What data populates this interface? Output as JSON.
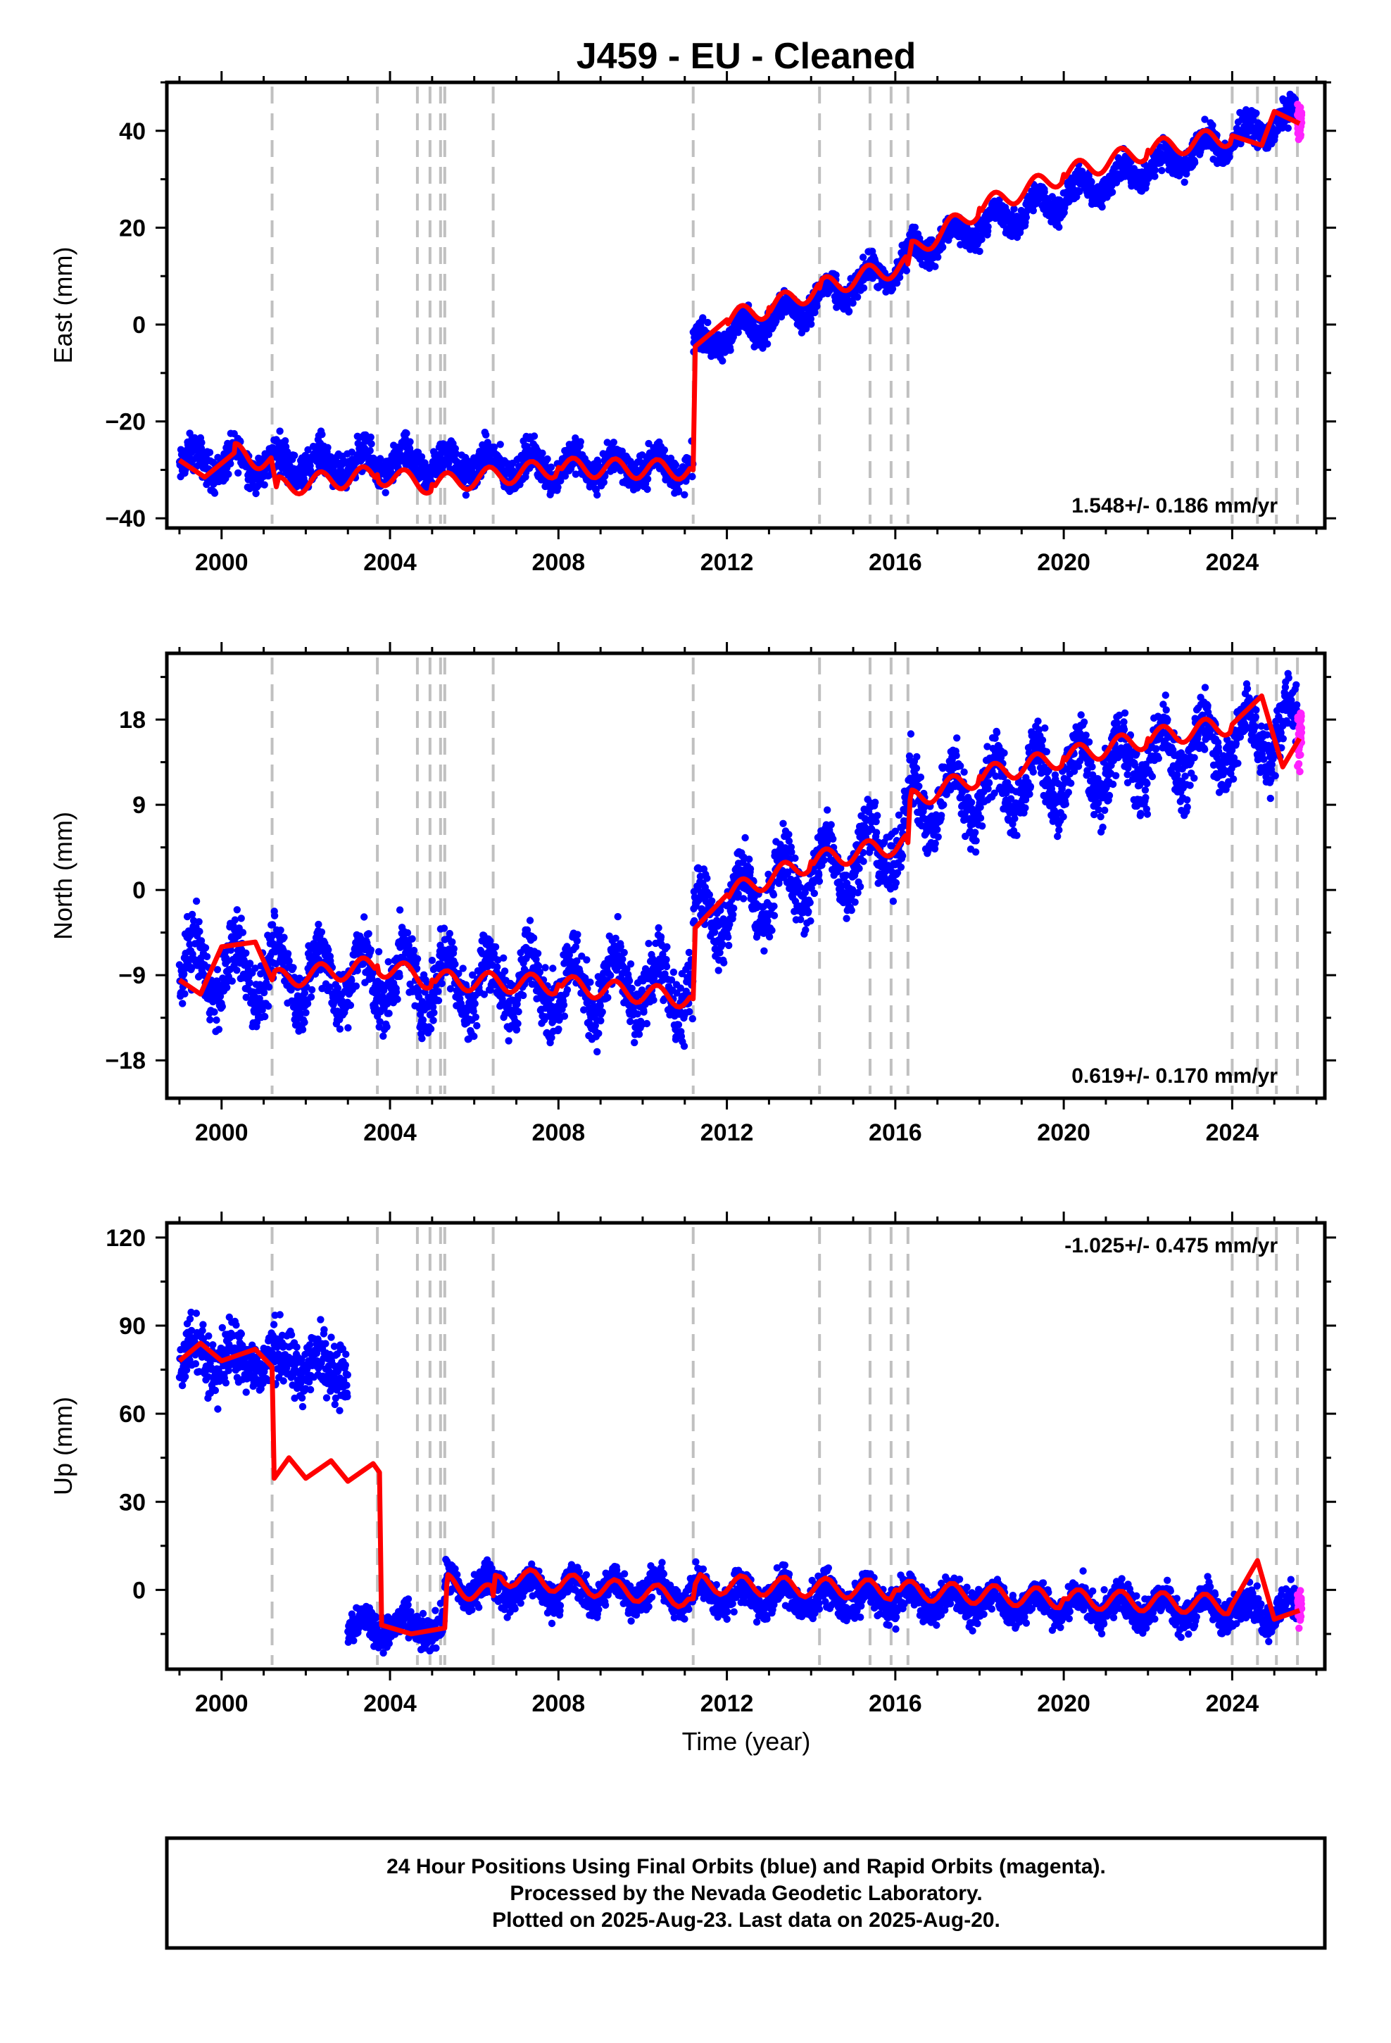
{
  "page": {
    "title": "J459  - EU - Cleaned",
    "xlabel": "Time (year)",
    "footer": [
      "24 Hour Positions Using Final Orbits (blue) and Rapid Orbits (magenta).",
      "Processed by the Nevada Geodetic Laboratory.",
      "Plotted on 2025-Aug-23. Last data on 2025-Aug-20."
    ]
  },
  "colors": {
    "final_orbits": "#0000ff",
    "rapid_orbits": "#ff22ff",
    "model": "#ff0000",
    "events": "#c0c0c0",
    "frame": "#000000"
  },
  "chart_data": [
    {
      "type": "scatter",
      "panel": "east",
      "title": "",
      "ylabel": "East (mm)",
      "xlabel": "",
      "xlim": [
        1998.7,
        2026.2
      ],
      "ylim": [
        -42,
        50
      ],
      "xticks": [
        2000,
        2004,
        2008,
        2012,
        2016,
        2020,
        2024
      ],
      "yticks": [
        -40,
        -20,
        0,
        20,
        40
      ],
      "ytick_labels": [
        "−40",
        "−20",
        "0",
        "20",
        "40"
      ],
      "rate_text": "1.548+/- 0.186 mm/yr",
      "rate_position": "bottom-right",
      "events": [
        2001.2,
        2003.7,
        2004.65,
        2004.95,
        2005.2,
        2005.3,
        2006.45,
        2011.2,
        2014.2,
        2015.4,
        2015.9,
        2016.3,
        2024.0,
        2024.6,
        2025.05,
        2025.55
      ],
      "series": [
        {
          "name": "Final Orbits",
          "color": "#0000ff",
          "segments": [
            {
              "start": 1999.0,
              "end": 2011.2,
              "start_value": -28.5,
              "end_value": -29.5,
              "amplitude": 2.5,
              "scatter": 3.2
            },
            {
              "start": 2011.2,
              "end": 2016.3,
              "start_value": -5.0,
              "end_value": 12.5,
              "amplitude": 2.5,
              "scatter": 2.5
            },
            {
              "start": 2016.3,
              "end": 2025.55,
              "start_value": 15.0,
              "end_value": 43.0,
              "amplitude": 2.3,
              "scatter": 2.5
            }
          ]
        },
        {
          "name": "Rapid Orbits",
          "color": "#ff22ff",
          "range": [
            2025.55,
            2025.65
          ],
          "center": 42,
          "scatter": 3
        }
      ],
      "model": [
        [
          1999.0,
          -28.0
        ],
        [
          1999.6,
          -31.5
        ],
        [
          2000.3,
          -26.5
        ],
        [
          2001.2,
          -28.5
        ],
        [
          2001.3,
          -33.5
        ],
        [
          2003.7,
          -31.0
        ],
        [
          2005.0,
          -33.0
        ],
        [
          2008.0,
          -29.5
        ],
        [
          2011.2,
          -30.0
        ],
        [
          2011.25,
          -4.5
        ],
        [
          2012.0,
          1.0
        ],
        [
          2013.0,
          3.5
        ],
        [
          2014.2,
          7.5
        ],
        [
          2016.3,
          12.5
        ],
        [
          2016.35,
          15.0
        ],
        [
          2018.0,
          24.0
        ],
        [
          2020.0,
          31.0
        ],
        [
          2022.0,
          36.0
        ],
        [
          2024.0,
          39.0
        ],
        [
          2024.7,
          37.0
        ],
        [
          2025.0,
          44.0
        ],
        [
          2025.6,
          41.5
        ]
      ]
    },
    {
      "type": "scatter",
      "panel": "north",
      "title": "",
      "ylabel": "North (mm)",
      "xlabel": "",
      "xlim": [
        1998.7,
        2026.2
      ],
      "ylim": [
        -22,
        25
      ],
      "xticks": [
        2000,
        2004,
        2008,
        2012,
        2016,
        2020,
        2024
      ],
      "yticks": [
        -18,
        -9,
        0,
        9,
        18
      ],
      "ytick_labels": [
        "−18",
        "−9",
        "0",
        "9",
        "18"
      ],
      "rate_text": "0.619+/- 0.170 mm/yr",
      "rate_position": "bottom-right",
      "events": [
        2001.2,
        2003.7,
        2004.65,
        2004.95,
        2005.2,
        2005.3,
        2006.45,
        2011.2,
        2014.2,
        2015.4,
        2015.9,
        2016.3,
        2024.0,
        2024.6,
        2025.05,
        2025.55
      ],
      "series": [
        {
          "name": "Final Orbits",
          "color": "#0000ff",
          "segments": [
            {
              "start": 1999.0,
              "end": 2011.2,
              "start_value": -8.5,
              "end_value": -10.5,
              "amplitude": 3.0,
              "scatter": 3.0
            },
            {
              "start": 2011.2,
              "end": 2016.3,
              "start_value": -3.0,
              "end_value": 5.5,
              "amplitude": 3.0,
              "scatter": 2.8
            },
            {
              "start": 2016.3,
              "end": 2025.55,
              "start_value": 9.0,
              "end_value": 17.0,
              "amplitude": 3.2,
              "scatter": 2.8
            }
          ]
        },
        {
          "name": "Rapid Orbits",
          "color": "#ff22ff",
          "range": [
            2025.55,
            2025.65
          ],
          "center": 16,
          "scatter": 3
        }
      ],
      "model": [
        [
          1999.0,
          -9.5
        ],
        [
          1999.5,
          -11.0
        ],
        [
          2000.0,
          -6.0
        ],
        [
          2000.8,
          -5.5
        ],
        [
          2001.2,
          -9.5
        ],
        [
          2003.7,
          -8.0
        ],
        [
          2005.0,
          -9.5
        ],
        [
          2008.0,
          -10.0
        ],
        [
          2011.2,
          -11.5
        ],
        [
          2011.25,
          -4.0
        ],
        [
          2012.0,
          -0.5
        ],
        [
          2014.0,
          3.0
        ],
        [
          2016.3,
          5.0
        ],
        [
          2016.35,
          9.5
        ],
        [
          2018.0,
          12.0
        ],
        [
          2020.0,
          14.0
        ],
        [
          2022.0,
          16.0
        ],
        [
          2024.0,
          17.5
        ],
        [
          2024.7,
          20.5
        ],
        [
          2025.2,
          13.0
        ],
        [
          2025.6,
          16.0
        ]
      ]
    },
    {
      "type": "scatter",
      "panel": "up",
      "title": "",
      "ylabel": "Up (mm)",
      "xlabel": "Time (year)",
      "xlim": [
        1998.7,
        2026.2
      ],
      "ylim": [
        -27,
        125
      ],
      "xticks": [
        2000,
        2004,
        2008,
        2012,
        2016,
        2020,
        2024
      ],
      "yticks": [
        0,
        30,
        60,
        90,
        120
      ],
      "ytick_labels": [
        "0",
        "30",
        "60",
        "90",
        "120"
      ],
      "rate_text": "-1.025+/- 0.475 mm/yr",
      "rate_position": "top-right",
      "events": [
        2001.2,
        2003.7,
        2004.65,
        2004.95,
        2005.2,
        2005.3,
        2006.45,
        2011.2,
        2014.2,
        2015.4,
        2015.9,
        2016.3,
        2024.0,
        2024.6,
        2025.05,
        2025.55
      ],
      "series": [
        {
          "name": "Final Orbits",
          "color": "#0000ff",
          "segments": [
            {
              "start": 1999.0,
              "end": 2003.0,
              "start_value": 80.0,
              "end_value": 76.0,
              "amplitude": 4.0,
              "scatter": 9.0
            },
            {
              "start": 2003.0,
              "end": 2005.3,
              "start_value": -12.0,
              "end_value": -13.0,
              "amplitude": 3.0,
              "scatter": 5.0
            },
            {
              "start": 2005.3,
              "end": 2025.55,
              "start_value": 1.0,
              "end_value": -7.0,
              "amplitude": 4.0,
              "scatter": 5.0
            }
          ]
        },
        {
          "name": "Rapid Orbits",
          "color": "#ff22ff",
          "range": [
            2025.55,
            2025.65
          ],
          "center": -6,
          "scatter": 5
        }
      ],
      "model": [
        [
          1999.0,
          78.0
        ],
        [
          1999.5,
          84.0
        ],
        [
          2000.0,
          78.0
        ],
        [
          2000.8,
          82.0
        ],
        [
          2001.2,
          76.0
        ],
        [
          2001.25,
          38.0
        ],
        [
          2001.6,
          45.0
        ],
        [
          2002.0,
          38.0
        ],
        [
          2002.6,
          44.0
        ],
        [
          2003.0,
          37.0
        ],
        [
          2003.6,
          43.0
        ],
        [
          2003.75,
          40.0
        ],
        [
          2003.8,
          -12.0
        ],
        [
          2004.5,
          -15.0
        ],
        [
          2005.3,
          -13.0
        ],
        [
          2005.35,
          2.0
        ],
        [
          2006.45,
          -2.0
        ],
        [
          2006.5,
          5.0
        ],
        [
          2011.2,
          -3.0
        ],
        [
          2011.25,
          2.0
        ],
        [
          2016.0,
          0.0
        ],
        [
          2020.0,
          -3.0
        ],
        [
          2024.0,
          -5.0
        ],
        [
          2024.6,
          10.0
        ],
        [
          2025.0,
          -10.0
        ],
        [
          2025.6,
          -7.0
        ]
      ]
    }
  ]
}
